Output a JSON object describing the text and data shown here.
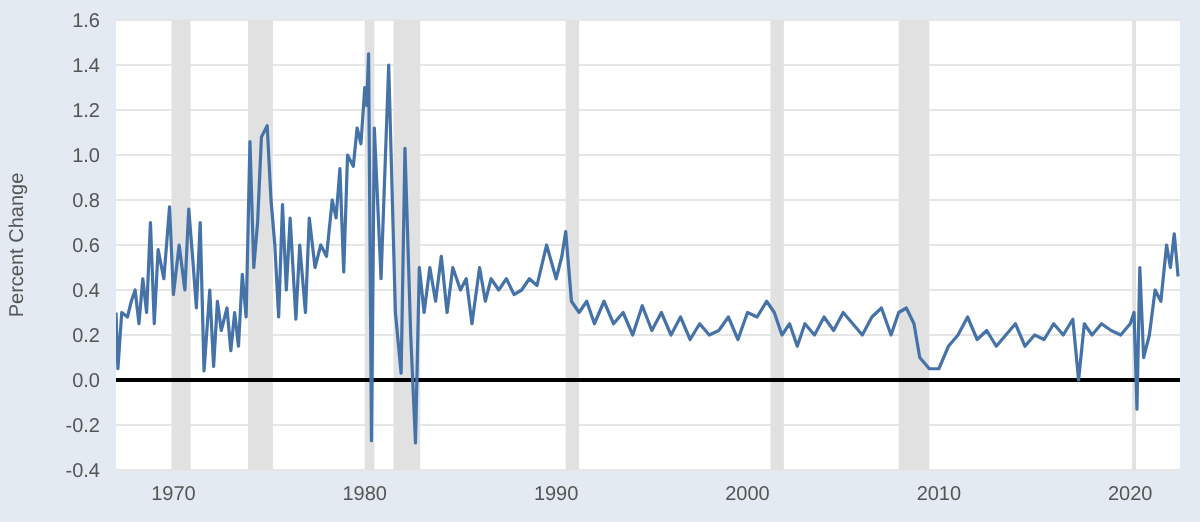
{
  "chart_data": {
    "type": "line",
    "ylabel": "Percent Change",
    "x": [
      1967.0,
      1967.1,
      1967.3,
      1967.6,
      1967.8,
      1968.0,
      1968.2,
      1968.4,
      1968.6,
      1968.8,
      1969.0,
      1969.2,
      1969.5,
      1969.8,
      1970.0,
      1970.3,
      1970.6,
      1970.8,
      1971.0,
      1971.2,
      1971.4,
      1971.6,
      1971.9,
      1972.1,
      1972.3,
      1972.5,
      1972.8,
      1973.0,
      1973.2,
      1973.4,
      1973.6,
      1973.8,
      1974.0,
      1974.2,
      1974.4,
      1974.6,
      1974.9,
      1975.1,
      1975.3,
      1975.5,
      1975.7,
      1975.9,
      1976.1,
      1976.4,
      1976.6,
      1976.9,
      1977.1,
      1977.4,
      1977.7,
      1978.0,
      1978.3,
      1978.5,
      1978.7,
      1978.9,
      1979.1,
      1979.4,
      1979.6,
      1979.8,
      1980.0,
      1980.1,
      1980.2,
      1980.35,
      1980.5,
      1980.85,
      1981.25,
      1981.6,
      1981.9,
      1982.1,
      1982.4,
      1982.65,
      1982.85,
      1983.1,
      1983.4,
      1983.7,
      1984.0,
      1984.3,
      1984.6,
      1985.0,
      1985.3,
      1985.6,
      1986.0,
      1986.3,
      1986.6,
      1987.0,
      1987.4,
      1987.8,
      1988.2,
      1988.6,
      1989.0,
      1989.5,
      1990.0,
      1990.3,
      1990.5,
      1990.8,
      1991.2,
      1991.6,
      1992.0,
      1992.5,
      1993.0,
      1993.5,
      1994.0,
      1994.5,
      1995.0,
      1995.5,
      1996.0,
      1996.5,
      1997.0,
      1997.5,
      1998.0,
      1998.5,
      1999.0,
      1999.5,
      2000.0,
      2000.5,
      2001.0,
      2001.4,
      2001.8,
      2002.2,
      2002.6,
      2003.0,
      2003.5,
      2004.0,
      2004.5,
      2005.0,
      2005.5,
      2006.0,
      2006.5,
      2007.0,
      2007.5,
      2007.9,
      2008.3,
      2008.7,
      2009.0,
      2009.5,
      2010.0,
      2010.5,
      2011.0,
      2011.5,
      2012.0,
      2012.5,
      2013.0,
      2013.5,
      2014.0,
      2014.5,
      2015.0,
      2015.5,
      2016.0,
      2016.5,
      2017.0,
      2017.3,
      2017.6,
      2018.0,
      2018.5,
      2019.0,
      2019.5,
      2020.0,
      2020.2,
      2020.35,
      2020.5,
      2020.7,
      2021.0,
      2021.3,
      2021.6,
      2021.9,
      2022.1,
      2022.3,
      2022.5
    ],
    "series": [
      {
        "color": "#4572a7",
        "values": [
          0.3,
          0.05,
          0.3,
          0.28,
          0.35,
          0.4,
          0.25,
          0.45,
          0.3,
          0.7,
          0.25,
          0.58,
          0.45,
          0.77,
          0.38,
          0.6,
          0.4,
          0.76,
          0.55,
          0.32,
          0.7,
          0.04,
          0.4,
          0.06,
          0.35,
          0.22,
          0.32,
          0.13,
          0.3,
          0.15,
          0.47,
          0.28,
          1.06,
          0.5,
          0.7,
          1.08,
          1.13,
          0.8,
          0.6,
          0.28,
          0.78,
          0.4,
          0.72,
          0.27,
          0.6,
          0.3,
          0.72,
          0.5,
          0.6,
          0.55,
          0.8,
          0.72,
          0.94,
          0.48,
          1.0,
          0.95,
          1.12,
          1.05,
          1.3,
          1.22,
          1.45,
          -0.27,
          1.12,
          0.45,
          1.4,
          0.3,
          0.03,
          1.03,
          0.2,
          -0.28,
          0.5,
          0.3,
          0.5,
          0.35,
          0.55,
          0.3,
          0.5,
          0.4,
          0.45,
          0.25,
          0.5,
          0.35,
          0.45,
          0.4,
          0.45,
          0.38,
          0.4,
          0.45,
          0.42,
          0.6,
          0.45,
          0.55,
          0.66,
          0.35,
          0.3,
          0.35,
          0.25,
          0.35,
          0.25,
          0.3,
          0.2,
          0.33,
          0.22,
          0.3,
          0.2,
          0.28,
          0.18,
          0.25,
          0.2,
          0.22,
          0.28,
          0.18,
          0.3,
          0.28,
          0.35,
          0.3,
          0.2,
          0.25,
          0.15,
          0.25,
          0.2,
          0.28,
          0.22,
          0.3,
          0.25,
          0.2,
          0.28,
          0.32,
          0.2,
          0.3,
          0.32,
          0.25,
          0.1,
          0.05,
          0.05,
          0.15,
          0.2,
          0.28,
          0.18,
          0.22,
          0.15,
          0.2,
          0.25,
          0.15,
          0.2,
          0.18,
          0.25,
          0.2,
          0.27,
          0.0,
          0.25,
          0.2,
          0.25,
          0.22,
          0.2,
          0.25,
          0.3,
          -0.13,
          0.5,
          0.1,
          0.2,
          0.4,
          0.35,
          0.6,
          0.5,
          0.65,
          0.46
        ]
      }
    ],
    "xlim": [
      1967,
      2022.6
    ],
    "xticks": [
      1970,
      1980,
      1990,
      2000,
      2010,
      2020
    ],
    "ylim": [
      -0.4,
      1.6
    ],
    "yticks": [
      {
        "value": -0.4,
        "label": "-0.4"
      },
      {
        "value": -0.2,
        "label": "-0.2"
      },
      {
        "value": 0,
        "label": "0.0"
      },
      {
        "value": 0.2,
        "label": "0.2"
      },
      {
        "value": 0.4,
        "label": "0.4"
      },
      {
        "value": 0.6,
        "label": "0.6"
      },
      {
        "value": 0.8,
        "label": "0.8"
      },
      {
        "value": 1,
        "label": "1.0"
      },
      {
        "value": 1.2,
        "label": "1.2"
      },
      {
        "value": 1.4,
        "label": "1.4"
      },
      {
        "value": 1.6,
        "label": "1.6"
      }
    ],
    "grid": "y",
    "marker": "none",
    "line_style": "solid",
    "ref_lines": [
      {
        "axis": "y",
        "value": 0,
        "color": "#000000"
      }
    ],
    "bands": [
      {
        "axis": "x",
        "from": 1969.9,
        "to": 1970.9,
        "color": "#e1e1e1"
      },
      {
        "axis": "x",
        "from": 1973.9,
        "to": 1975.2,
        "color": "#e1e1e1"
      },
      {
        "axis": "x",
        "from": 1980.0,
        "to": 1980.5,
        "color": "#e1e1e1"
      },
      {
        "axis": "x",
        "from": 1981.5,
        "to": 1982.9,
        "color": "#e1e1e1"
      },
      {
        "axis": "x",
        "from": 1990.5,
        "to": 1991.2,
        "color": "#e1e1e1"
      },
      {
        "axis": "x",
        "from": 2001.2,
        "to": 2001.9,
        "color": "#e1e1e1"
      },
      {
        "axis": "x",
        "from": 2007.9,
        "to": 2009.5,
        "color": "#e1e1e1"
      },
      {
        "axis": "x",
        "from": 2020.1,
        "to": 2020.3,
        "color": "#e1e1e1"
      }
    ]
  }
}
